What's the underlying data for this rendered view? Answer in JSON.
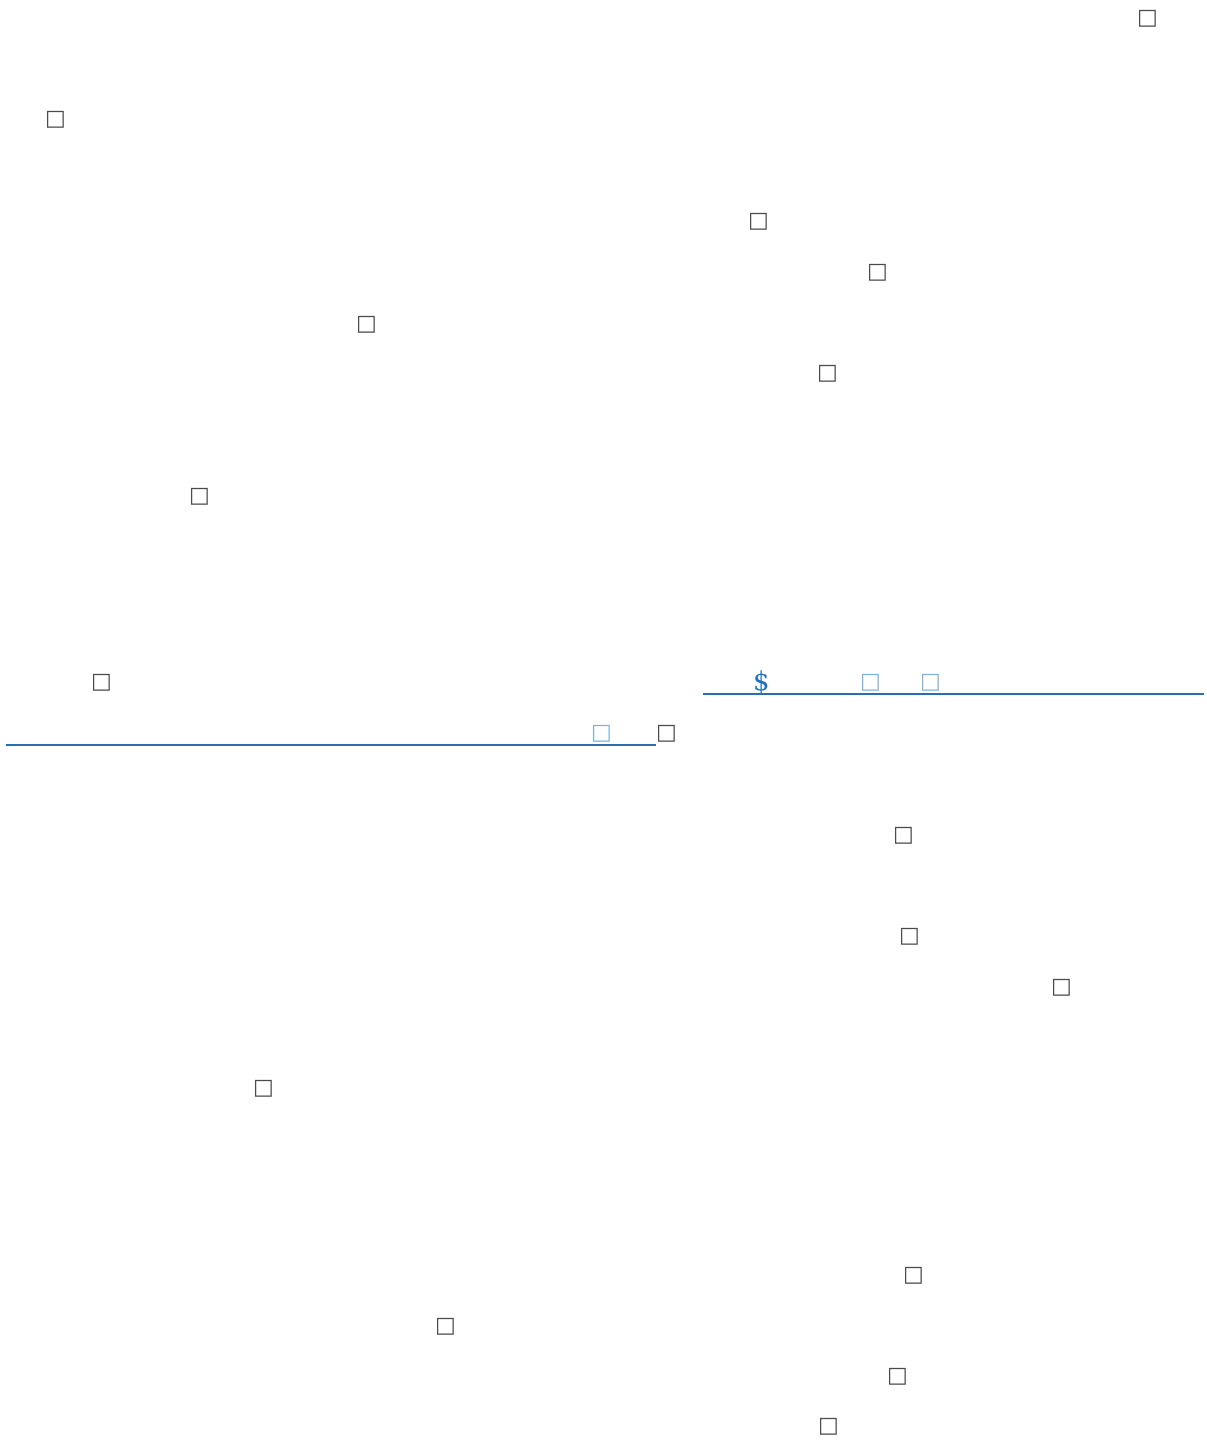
{
  "page": {
    "missing_glyph": "□",
    "currency_symbol": "$"
  },
  "colors": {
    "rule": "#2a6db0",
    "symbol_accent": "#1f6fbf",
    "glyph_dark": "#4a4a4a",
    "glyph_light": "#7fb2dc"
  }
}
